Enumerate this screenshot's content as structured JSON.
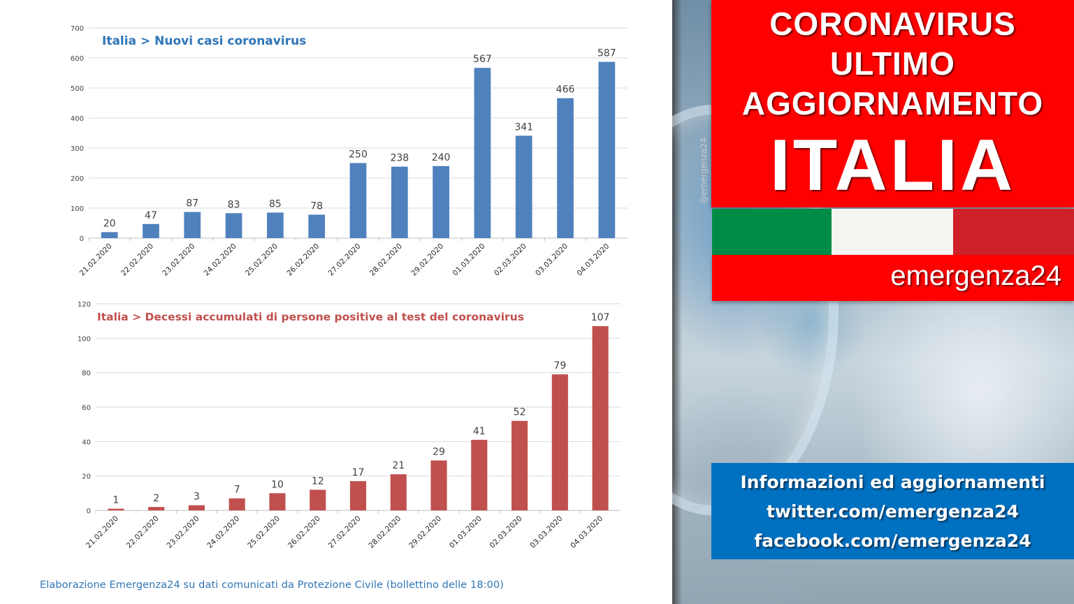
{
  "chart_data": [
    {
      "type": "bar",
      "title": "Italia > Nuovi casi coronavirus",
      "categories": [
        "21.02.2020",
        "22.02.2020",
        "23.02.2020",
        "24.02.2020",
        "25.02.2020",
        "26.02.2020",
        "27.02.2020",
        "28.02.2020",
        "29.02.2020",
        "01.03.2020",
        "02.03.2020",
        "03.03.2020",
        "04.03.2020"
      ],
      "values": [
        20,
        47,
        87,
        83,
        85,
        78,
        250,
        238,
        240,
        567,
        341,
        466,
        587
      ],
      "ylim": [
        0,
        700
      ],
      "yticks": [
        0,
        100,
        200,
        300,
        400,
        500,
        600,
        700
      ],
      "grid": true,
      "bar_color": "#4f81bd",
      "title_color": "#2e75b6"
    },
    {
      "type": "bar",
      "title": "Italia > Decessi accumulati di persone positive al test del coronavirus",
      "categories": [
        "21.02.2020",
        "22.02.2020",
        "23.02.2020",
        "24.02.2020",
        "25.02.2020",
        "26.02.2020",
        "27.02.2020",
        "28.02.2020",
        "29.02.2020",
        "01.03.2020",
        "02.03.2020",
        "03.03.2020",
        "04.03.2020"
      ],
      "values": [
        1,
        2,
        3,
        7,
        10,
        12,
        17,
        21,
        29,
        41,
        52,
        79,
        107
      ],
      "ylim": [
        0,
        120
      ],
      "yticks": [
        0,
        20,
        40,
        60,
        80,
        100,
        120
      ],
      "grid": true,
      "bar_color": "#c0504d",
      "title_color": "#c0504d"
    }
  ],
  "footnote": "Elaborazione Emergenza24 su dati comunicati da Protezione Civile (bollettino delle 18:00)",
  "banner": {
    "line1": "CORONAVIRUS",
    "line2": "ULTIMO",
    "line3": "AGGIORNAMENTO",
    "line4": "ITALIA",
    "watermark": "@emergenza24",
    "brand": "emergenza24",
    "flag_colors": [
      "#008c45",
      "#f4f5f0",
      "#cd212a"
    ],
    "accent_color": "#ff0000"
  },
  "info": {
    "line1": "Informazioni ed aggiornamenti",
    "line2": "twitter.com/emergenza24",
    "line3": "facebook.com/emergenza24",
    "color": "#0070c0"
  }
}
